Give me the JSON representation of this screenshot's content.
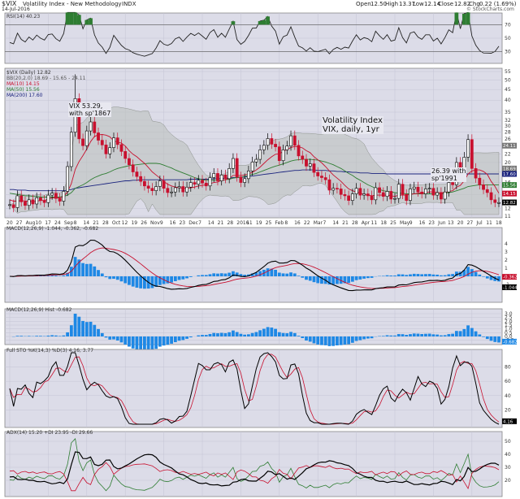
{
  "header": {
    "symbol": "$VIX",
    "name": "Volatility Index - New Methodology",
    "exchange": "INDX",
    "date": "14-Jul-2016",
    "open_label": "Open",
    "open": "12.50",
    "high_label": "High",
    "high": "13.37",
    "low_label": "Low",
    "low": "12.14",
    "close_label": "Close",
    "close": "12.82",
    "chg_label": "Chg",
    "chg": "0.22 (1.69%)",
    "watermark": "© StockCharts.com"
  },
  "legends": {
    "rsi": "RSI(14) 40.23",
    "price_title": "$VIX (Daily) 12.82",
    "bb": "BB(20,2.0) 18.69 - 15.65 - 24.11",
    "ma10": "MA(10) 14.15",
    "ma50": "MA(50) 15.56",
    "ma200": "MA(200) 17.60",
    "macd1": "MACD(12,26,9) -1.044, -0.362, -0.682",
    "macd2": "MACD(12,26,9) Hist -0.682",
    "sto": "Full STO %K(14,3) %D(3) 4.16, 3.77",
    "adx": "ADX(14) 15.20 +DI 23.95 -DI 29.66"
  },
  "annotations": {
    "peak": "VIX 53.29,\nwith sp'1867",
    "title": "Volatility Index\nVIX, daily, 1yr",
    "june": "26.39 with\nsp'1991"
  },
  "axes": {
    "rsi_ticks": [
      "70",
      "50",
      "30"
    ],
    "price_ticks": [
      "55",
      "50",
      "45",
      "40",
      "35",
      "32",
      "30",
      "28",
      "26",
      "24",
      "22",
      "20",
      "18",
      "16",
      "14",
      "12",
      "11"
    ],
    "price_markers": [
      "24.11",
      "18.69",
      "17.60",
      "15.56",
      "14.15",
      "12.82"
    ],
    "macd_ticks": [
      "4",
      "3",
      "2",
      "1",
      "0",
      "-1"
    ],
    "macd_markers": [
      "-0.362",
      "-1.044"
    ],
    "hist_ticks": [
      "3.0",
      "2.5",
      "2.0",
      "1.5",
      "1.0",
      "0.5",
      "0.0",
      "-0.5"
    ],
    "hist_marker": "-0.682",
    "sto_ticks": [
      "80",
      "60",
      "40",
      "20"
    ],
    "sto_marker": "4.16",
    "adx_ticks": [
      "50",
      "40",
      "30",
      "20"
    ],
    "x_labels": [
      "20",
      "27",
      "Aug",
      "10",
      "17",
      "24",
      "Sep",
      "8",
      "14",
      "21",
      "28",
      "Oct",
      "12",
      "19",
      "26",
      "Nov",
      "9",
      "16",
      "23",
      "Dec",
      "7",
      "14",
      "21",
      "28",
      "2016",
      "11",
      "19",
      "25",
      "Feb",
      "8",
      "16",
      "22",
      "Mar",
      "7",
      "14",
      "21",
      "28",
      "Apr",
      "11",
      "18",
      "25",
      "May",
      "9",
      "16",
      "23",
      "Jun",
      "13",
      "20",
      "27",
      "Jul",
      "11",
      "18"
    ]
  },
  "colors": {
    "bg": "#dcdce8",
    "up": "#000000",
    "down": "#c8102e",
    "ma10": "#c8102e",
    "ma50": "#2e7d32",
    "ma200": "#1a237e",
    "hist": "#1e88e5"
  },
  "chart_data": [
    {
      "type": "line",
      "title": "$VIX (Daily)",
      "series": [
        {
          "name": "Close",
          "values": [
            12.5,
            12.1,
            13.8,
            12.9,
            12.4,
            13.2,
            12.6,
            13.5,
            13.1,
            12.8,
            13.9,
            14.2,
            13.4,
            13.0,
            14.5,
            19.1,
            28.0,
            40.7,
            26.0,
            24.1,
            28.4,
            31.4,
            27.8,
            25.6,
            24.3,
            22.0,
            23.6,
            26.3,
            24.4,
            22.6,
            20.9,
            19.5,
            18.0,
            17.1,
            16.2,
            15.4,
            15.0,
            14.6,
            15.3,
            16.3,
            15.0,
            14.3,
            14.4,
            15.1,
            15.3,
            14.4,
            15.2,
            16.0,
            15.7,
            16.4,
            15.9,
            15.4,
            16.9,
            17.7,
            16.3,
            17.4,
            16.7,
            18.7,
            20.9,
            17.0,
            16.0,
            16.7,
            18.2,
            20.1,
            20.7,
            23.0,
            24.2,
            26.1,
            24.5,
            23.8,
            20.4,
            23.0,
            24.0,
            26.9,
            24.2,
            21.5,
            20.7,
            19.2,
            19.7,
            17.9,
            17.2,
            16.9,
            16.5,
            14.7,
            15.0,
            14.9,
            14.0,
            13.8,
            13.1,
            14.1,
            15.0,
            13.9,
            14.1,
            13.8,
            13.2,
            15.1,
            14.3,
            13.7,
            14.5,
            13.3,
            13.4,
            15.7,
            14.0,
            13.1,
            14.9,
            15.2,
            14.4,
            14.1,
            14.9,
            15.0,
            13.9,
            14.3,
            13.3,
            14.4,
            16.0,
            15.6,
            20.0,
            17.3,
            21.2,
            25.8,
            18.7,
            16.8,
            15.6,
            14.8,
            14.3,
            13.2,
            12.8,
            12.8
          ]
        },
        {
          "name": "MA(10)",
          "values": [
            13.2,
            13.0,
            13.0,
            13.1,
            13.0,
            13.0,
            12.9,
            13.0,
            13.1,
            13.1,
            13.3,
            13.5,
            13.5,
            13.5,
            13.7,
            14.4,
            15.8,
            18.5,
            20.2,
            21.6,
            23.2,
            25.2,
            26.7,
            27.2,
            27.3,
            27.1,
            26.6,
            25.4,
            25.1,
            24.8,
            24.0,
            22.8,
            21.9,
            21.3,
            20.5,
            19.8,
            18.9,
            18.0,
            17.4,
            16.8,
            16.2,
            15.7,
            15.4,
            15.2,
            15.1,
            15.0,
            15.0,
            15.1,
            15.2,
            15.4,
            15.5,
            15.6,
            15.8,
            16.0,
            16.1,
            16.4,
            16.5,
            16.8,
            17.3,
            17.3,
            17.3,
            17.4,
            17.6,
            17.9,
            18.4,
            19.0,
            19.8,
            20.6,
            21.3,
            21.9,
            22.0,
            22.6,
            23.1,
            23.6,
            23.9,
            23.8,
            23.5,
            22.8,
            22.3,
            21.3,
            20.6,
            19.9,
            19.1,
            18.2,
            17.4,
            16.8,
            16.2,
            15.5,
            14.9,
            14.6,
            14.4,
            14.2,
            14.0,
            13.9,
            13.8,
            13.9,
            13.9,
            13.9,
            13.9,
            13.8,
            13.7,
            13.9,
            13.9,
            13.9,
            14.0,
            14.1,
            14.2,
            14.3,
            14.3,
            14.4,
            14.4,
            14.3,
            14.3,
            14.3,
            14.5,
            14.6,
            15.2,
            15.5,
            16.3,
            17.6,
            18.2,
            18.4,
            18.4,
            18.1,
            17.5,
            16.2,
            15.3,
            14.2
          ]
        },
        {
          "name": "MA(50)",
          "values": [
            14.2,
            14.1,
            14.0,
            13.9,
            13.8,
            13.8,
            13.7,
            13.7,
            13.6,
            13.6,
            13.6,
            13.6,
            13.6,
            13.6,
            13.7,
            13.9,
            14.3,
            15.0,
            15.3,
            15.6,
            16.0,
            16.5,
            16.9,
            17.2,
            17.5,
            17.7,
            18.0,
            18.4,
            18.7,
            18.9,
            19.1,
            19.3,
            19.4,
            19.5,
            19.6,
            19.7,
            19.8,
            19.8,
            19.8,
            19.7,
            19.4,
            19.1,
            18.8,
            18.4,
            18.1,
            17.8,
            17.5,
            17.2,
            16.9,
            16.7,
            16.5,
            16.4,
            16.4,
            16.4,
            16.4,
            16.4,
            16.5,
            16.6,
            16.8,
            16.9,
            17.0,
            17.1,
            17.3,
            17.5,
            17.7,
            18.0,
            18.3,
            18.6,
            18.9,
            19.2,
            19.4,
            19.7,
            20.0,
            20.3,
            20.5,
            20.6,
            20.7,
            20.7,
            20.7,
            20.6,
            20.5,
            20.3,
            20.1,
            19.8,
            19.5,
            19.1,
            18.7,
            18.2,
            17.7,
            17.3,
            16.8,
            16.4,
            16.0,
            15.6,
            15.3,
            15.0,
            14.8,
            14.6,
            14.5,
            14.4,
            14.3,
            14.2,
            14.2,
            14.1,
            14.1,
            14.1,
            14.1,
            14.1,
            14.1,
            14.1,
            14.1,
            14.1,
            14.1,
            14.2,
            14.3,
            14.4,
            14.6,
            14.8,
            15.0,
            15.3,
            15.4,
            15.5,
            15.6,
            15.6,
            15.6,
            15.6,
            15.6,
            15.56
          ]
        },
        {
          "name": "MA(200)",
          "values": [
            14.8,
            14.8,
            14.7,
            14.7,
            14.7,
            14.6,
            14.6,
            14.6,
            14.6,
            14.6,
            14.6,
            14.6,
            14.6,
            14.6,
            14.6,
            14.7,
            14.8,
            15.0,
            15.1,
            15.2,
            15.3,
            15.4,
            15.5,
            15.6,
            15.7,
            15.8,
            15.9,
            16.0,
            16.1,
            16.2,
            16.3,
            16.3,
            16.4,
            16.4,
            16.5,
            16.5,
            16.5,
            16.5,
            16.5,
            16.5,
            16.5,
            16.5,
            16.5,
            16.5,
            16.5,
            16.5,
            16.5,
            16.6,
            16.6,
            16.6,
            16.6,
            16.6,
            16.6,
            16.7,
            16.7,
            16.7,
            16.8,
            16.8,
            16.9,
            16.9,
            17.0,
            17.0,
            17.1,
            17.2,
            17.3,
            17.4,
            17.5,
            17.6,
            17.7,
            17.8,
            17.9,
            18.0,
            18.1,
            18.2,
            18.3,
            18.3,
            18.4,
            18.4,
            18.4,
            18.4,
            18.3,
            18.3,
            18.3,
            18.2,
            18.2,
            18.1,
            18.1,
            18.0,
            18.0,
            17.9,
            17.9,
            17.8,
            17.8,
            17.8,
            17.7,
            17.7,
            17.7,
            17.7,
            17.6,
            17.6,
            17.6,
            17.6,
            17.6,
            17.6,
            17.6,
            17.6,
            17.6,
            17.6,
            17.6,
            17.6,
            17.6,
            17.6,
            17.6,
            17.6,
            17.6,
            17.6,
            17.6,
            17.6,
            17.6,
            17.6,
            17.6,
            17.6,
            17.6,
            17.6,
            17.6,
            17.6,
            17.6,
            17.6
          ]
        }
      ],
      "ylim": [
        11,
        55
      ],
      "yscale": "log",
      "peak": 53.29
    }
  ]
}
